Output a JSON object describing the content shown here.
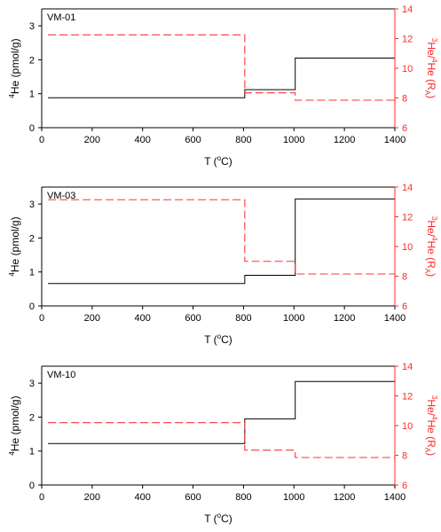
{
  "colors": {
    "left_axis": "#000000",
    "right_axis": "#ff2a2a",
    "he4_series": "#000000",
    "ratio_series": "#ff3333"
  },
  "labels": {
    "xlabel": {
      "main": "T (",
      "sup": "o",
      "tail": "C)"
    },
    "ylabel_left": {
      "sup": "4",
      "main": "He (pmol/g)"
    },
    "ylabel_right": {
      "sup1": "3",
      "main1": "He/",
      "sup2": "4",
      "main2": "He (R",
      "sub": "A",
      "tail": ")"
    }
  },
  "chart_data": [
    {
      "type": "line",
      "step": true,
      "panel_label": "VM-01",
      "xlim": [
        0,
        1400
      ],
      "ylim_left": [
        0,
        3.5
      ],
      "ylim_right": [
        6,
        14
      ],
      "x_ticks": [
        0,
        200,
        400,
        600,
        800,
        1000,
        1200,
        1400
      ],
      "y_ticks_left": [
        0,
        1,
        2,
        3
      ],
      "y_ticks_right": [
        6,
        8,
        10,
        12,
        14
      ],
      "series": [
        {
          "axis": "left",
          "style": "solid",
          "x": [
            25,
            805,
            805,
            1005,
            1005,
            1410
          ],
          "y": [
            0.88,
            0.88,
            1.12,
            1.12,
            2.05,
            2.05
          ]
        },
        {
          "axis": "right",
          "style": "dashed",
          "x": [
            25,
            805,
            805,
            1005,
            1005,
            1410
          ],
          "y": [
            12.25,
            12.25,
            8.35,
            8.35,
            7.85,
            7.85
          ]
        }
      ]
    },
    {
      "type": "line",
      "step": true,
      "panel_label": "VM-03",
      "xlim": [
        0,
        1400
      ],
      "ylim_left": [
        0,
        3.5
      ],
      "ylim_right": [
        6,
        14
      ],
      "x_ticks": [
        0,
        200,
        400,
        600,
        800,
        1000,
        1200,
        1400
      ],
      "y_ticks_left": [
        0,
        1,
        2,
        3
      ],
      "y_ticks_right": [
        6,
        8,
        10,
        12,
        14
      ],
      "series": [
        {
          "axis": "left",
          "style": "solid",
          "x": [
            25,
            805,
            805,
            1005,
            1005,
            1410
          ],
          "y": [
            0.66,
            0.66,
            0.9,
            0.9,
            3.15,
            3.15
          ]
        },
        {
          "axis": "right",
          "style": "dashed",
          "x": [
            25,
            805,
            805,
            1005,
            1005,
            1410
          ],
          "y": [
            13.15,
            13.15,
            9.0,
            9.0,
            8.15,
            8.15
          ]
        }
      ]
    },
    {
      "type": "line",
      "step": true,
      "panel_label": "VM-10",
      "xlim": [
        0,
        1400
      ],
      "ylim_left": [
        0,
        3.5
      ],
      "ylim_right": [
        6,
        14
      ],
      "x_ticks": [
        0,
        200,
        400,
        600,
        800,
        1000,
        1200,
        1400
      ],
      "y_ticks_left": [
        0,
        1,
        2,
        3
      ],
      "y_ticks_right": [
        6,
        8,
        10,
        12,
        14
      ],
      "series": [
        {
          "axis": "left",
          "style": "solid",
          "x": [
            25,
            805,
            805,
            1005,
            1005,
            1410
          ],
          "y": [
            1.22,
            1.22,
            1.95,
            1.95,
            3.05,
            3.05
          ]
        },
        {
          "axis": "right",
          "style": "dashed",
          "x": [
            25,
            805,
            805,
            1005,
            1005,
            1410
          ],
          "y": [
            10.2,
            10.2,
            8.35,
            8.35,
            7.85,
            7.85
          ]
        }
      ]
    }
  ]
}
